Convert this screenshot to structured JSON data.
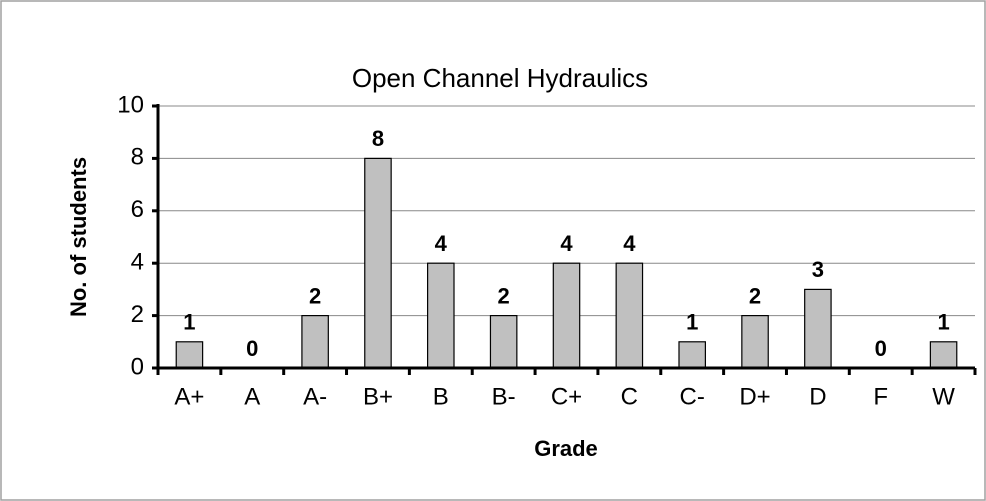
{
  "chart_data": {
    "type": "bar",
    "title": "Open Channel Hydraulics",
    "x_label": "Grade",
    "y_label": "No. of students",
    "categories": [
      "A+",
      "A",
      "A-",
      "B+",
      "B",
      "B-",
      "C+",
      "C",
      "C-",
      "D+",
      "D",
      "F",
      "W"
    ],
    "values": [
      1,
      0,
      2,
      8,
      4,
      2,
      4,
      4,
      1,
      2,
      3,
      0,
      1
    ],
    "color": "#c0c0c0",
    "ylim": [
      0,
      10
    ],
    "yticks": [
      0,
      2,
      4,
      6,
      8,
      10
    ],
    "grid": true
  }
}
